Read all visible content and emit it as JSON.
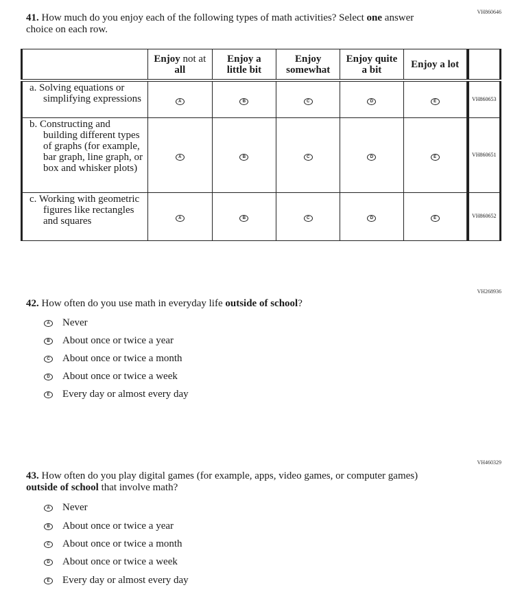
{
  "q41": {
    "id": "VH860646",
    "number": "41.",
    "text_pre": "How much do you enjoy each of the following types of math activities? Select ",
    "text_bold": "one",
    "text_post": " answer choice on each row.",
    "columns": [
      {
        "b": "Enjoy",
        "n": " not at ",
        "b2": "all"
      },
      {
        "b": "Enjoy a little bit"
      },
      {
        "b": "Enjoy somewhat"
      },
      {
        "b": "Enjoy quite a bit"
      },
      {
        "b": "Enjoy a lot"
      }
    ],
    "rows": [
      {
        "label": "a. Solving equations or simplifying expressions",
        "id": "VH860653"
      },
      {
        "label": "b. Constructing and building different types of graphs (for example, bar graph, line graph, or box and whisker plots)",
        "id": "VH860651"
      },
      {
        "label": "c. Working with geometric figures like rectangles and squares",
        "id": "VH860652"
      }
    ],
    "letters": [
      "A",
      "B",
      "C",
      "D",
      "E"
    ]
  },
  "q42": {
    "id": "VH268936",
    "number": "42.",
    "text_pre": "How often do you use math in everyday life ",
    "text_bold": "outside of school",
    "text_post": "?",
    "options": [
      {
        "letter": "A",
        "label": "Never"
      },
      {
        "letter": "B",
        "label": "About once or twice a year"
      },
      {
        "letter": "C",
        "label": "About once or twice a month"
      },
      {
        "letter": "D",
        "label": "About once or twice a week"
      },
      {
        "letter": "E",
        "label": "Every day or almost every day"
      }
    ]
  },
  "q43": {
    "id": "VH460329",
    "number": "43.",
    "text_pre": "How often do you play digital games (for example, apps, video games, or computer games) ",
    "text_bold": "outside of school",
    "text_post": " that involve math?",
    "options": [
      {
        "letter": "A",
        "label": "Never"
      },
      {
        "letter": "B",
        "label": "About once or twice a year"
      },
      {
        "letter": "C",
        "label": "About once or twice a month"
      },
      {
        "letter": "D",
        "label": "About once or twice a week"
      },
      {
        "letter": "E",
        "label": "Every day or almost every day"
      }
    ]
  }
}
